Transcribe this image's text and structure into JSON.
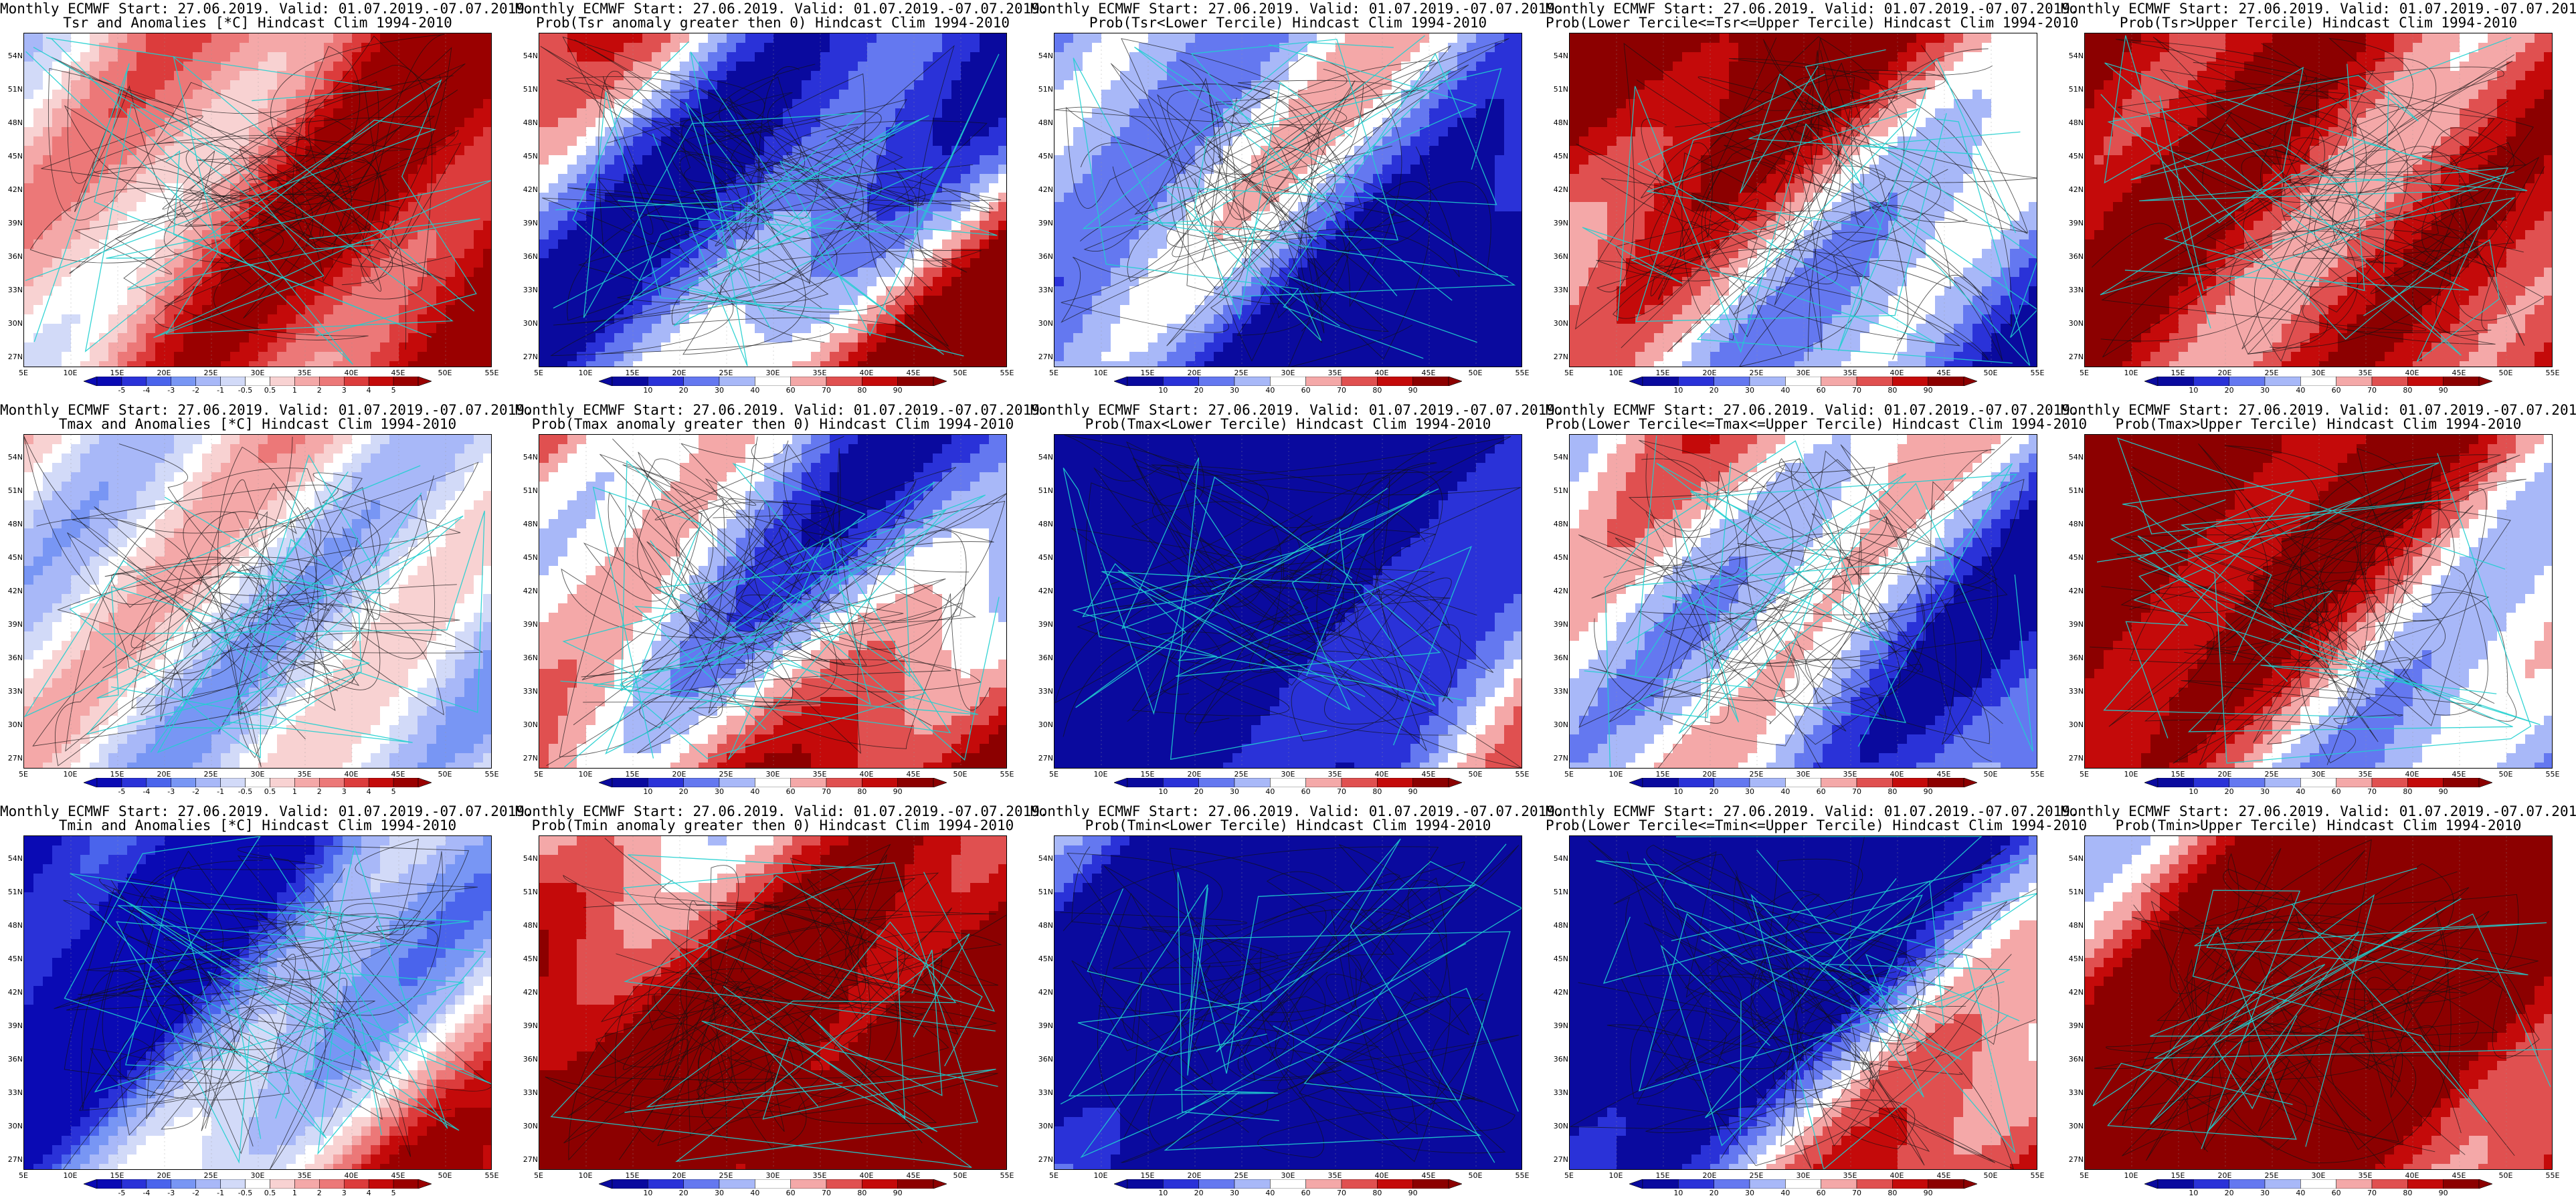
{
  "page": {
    "title_line1": "Monthly ECMWF Start: 27.06.2019. Valid: 01.07.2019.-07.07.2019."
  },
  "axes": {
    "lat_ticks": [
      "54N",
      "51N",
      "48N",
      "45N",
      "42N",
      "39N",
      "36N",
      "33N",
      "30N",
      "27N"
    ],
    "lon_ticks": [
      "5E",
      "10E",
      "15E",
      "20E",
      "25E",
      "30E",
      "35E",
      "40E",
      "45E",
      "50E",
      "55E"
    ]
  },
  "colorbars": {
    "anomaly": {
      "labels": [
        "-5",
        "-4",
        "-3",
        "-2",
        "-1",
        "-0.5",
        "0.5",
        "1",
        "2",
        "3",
        "4",
        "5"
      ],
      "colors": [
        "#0a0ab4",
        "#2a32d8",
        "#4a64ec",
        "#7896f4",
        "#a8b8f8",
        "#d2daf8",
        "#ffffff",
        "#f8d2d2",
        "#f4a8a8",
        "#ec7878",
        "#dc3c3c",
        "#c40a0a",
        "#9a0000"
      ]
    },
    "probability": {
      "labels": [
        "10",
        "20",
        "30",
        "40",
        "60",
        "70",
        "80",
        "90"
      ],
      "colors": [
        "#0a0a9e",
        "#2a32d8",
        "#6478f0",
        "#a8b8f8",
        "#ffffff",
        "#f4a8a8",
        "#e05050",
        "#c40a0a",
        "#8c0000"
      ]
    }
  },
  "chart_data": [
    {
      "type": "heatmap",
      "title": "Monthly ECMWF Start: 27.06.2019. Valid: 01.07.2019.-07.07.2019.",
      "subtitle": "Tsr and Anomalies [*C] Hindcast Clim 1994-2010",
      "colorbar": "anomaly",
      "field": "anom",
      "seed": 11,
      "bias": 0.25
    },
    {
      "type": "heatmap",
      "title": "Monthly ECMWF Start: 27.06.2019. Valid: 01.07.2019.-07.07.2019.",
      "subtitle": "Prob(Tsr anomaly greater then 0) Hindcast Clim 1994-2010",
      "colorbar": "probability",
      "field": "prob",
      "seed": 12,
      "bias": 0.55
    },
    {
      "type": "heatmap",
      "title": "Monthly ECMWF Start: 27.06.2019. Valid: 01.07.2019.-07.07.2019.",
      "subtitle": "Prob(Tsr<Lower Tercile) Hindcast Clim 1994-2010",
      "colorbar": "probability",
      "field": "prob",
      "seed": 13,
      "bias": -0.75
    },
    {
      "type": "heatmap",
      "title": "Monthly ECMWF Start: 27.06.2019. Valid: 01.07.2019.-07.07.2019.",
      "subtitle": "Prob(Lower Tercile<=Tsr<=Upper Tercile) Hindcast Clim 1994-2010",
      "colorbar": "probability",
      "field": "prob",
      "seed": 14,
      "bias": -0.35
    },
    {
      "type": "heatmap",
      "title": "Monthly ECMWF Start: 27.06.2019. Valid: 01.07.2019.-07.07.2019.",
      "subtitle": "Prob(Tsr>Upper Tercile) Hindcast Clim 1994-2010",
      "colorbar": "probability",
      "field": "prob",
      "seed": 15,
      "bias": 0.45
    },
    {
      "type": "heatmap",
      "title": "Monthly ECMWF Start: 27.06.2019. Valid: 01.07.2019.-07.07.2019.",
      "subtitle": "Tmax and Anomalies [*C] Hindcast Clim 1994-2010",
      "colorbar": "anomaly",
      "field": "anom",
      "seed": 21,
      "bias": 0.3
    },
    {
      "type": "heatmap",
      "title": "Monthly ECMWF Start: 27.06.2019. Valid: 01.07.2019.-07.07.2019.",
      "subtitle": "Prob(Tmax anomaly greater then 0) Hindcast Clim 1994-2010",
      "colorbar": "probability",
      "field": "prob",
      "seed": 22,
      "bias": 0.55
    },
    {
      "type": "heatmap",
      "title": "Monthly ECMWF Start: 27.06.2019. Valid: 01.07.2019.-07.07.2019.",
      "subtitle": "Prob(Tmax<Lower Tercile) Hindcast Clim 1994-2010",
      "colorbar": "probability",
      "field": "prob",
      "seed": 23,
      "bias": -0.75
    },
    {
      "type": "heatmap",
      "title": "Monthly ECMWF Start: 27.06.2019. Valid: 01.07.2019.-07.07.2019.",
      "subtitle": "Prob(Lower Tercile<=Tmax<=Upper Tercile) Hindcast Clim 1994-2010",
      "colorbar": "probability",
      "field": "prob",
      "seed": 24,
      "bias": -0.4
    },
    {
      "type": "heatmap",
      "title": "Monthly ECMWF Start: 27.06.2019. Valid: 01.07.2019.-07.07.2019.",
      "subtitle": "Prob(Tmax>Upper Tercile) Hindcast Clim 1994-2010",
      "colorbar": "probability",
      "field": "prob",
      "seed": 25,
      "bias": 0.45
    },
    {
      "type": "heatmap",
      "title": "Monthly ECMWF Start: 27.06.2019. Valid: 01.07.2019.-07.07.2019.",
      "subtitle": "Tmin and Anomalies [*C] Hindcast Clim 1994-2010",
      "colorbar": "anomaly",
      "field": "anom",
      "seed": 31,
      "bias": 0.25
    },
    {
      "type": "heatmap",
      "title": "Monthly ECMWF Start: 27.06.2019. Valid: 01.07.2019.-07.07.2019.",
      "subtitle": "Prob(Tmin anomaly greater then 0) Hindcast Clim 1994-2010",
      "colorbar": "probability",
      "field": "prob",
      "seed": 32,
      "bias": 0.6
    },
    {
      "type": "heatmap",
      "title": "Monthly ECMWF Start: 27.06.2019. Valid: 01.07.2019.-07.07.2019.",
      "subtitle": "Prob(Tmin<Lower Tercile) Hindcast Clim 1994-2010",
      "colorbar": "probability",
      "field": "prob",
      "seed": 33,
      "bias": -0.75
    },
    {
      "type": "heatmap",
      "title": "Monthly ECMWF Start: 27.06.2019. Valid: 01.07.2019.-07.07.2019.",
      "subtitle": "Prob(Lower Tercile<=Tmin<=Upper Tercile) Hindcast Clim 1994-2010",
      "colorbar": "probability",
      "field": "prob",
      "seed": 34,
      "bias": -0.35
    },
    {
      "type": "heatmap",
      "title": "Monthly ECMWF Start: 27.06.2019. Valid: 01.07.2019.-07.07.2019.",
      "subtitle": "Prob(Tmin>Upper Tercile) Hindcast Clim 1994-2010",
      "colorbar": "probability",
      "field": "prob",
      "seed": 35,
      "bias": 0.4
    }
  ]
}
